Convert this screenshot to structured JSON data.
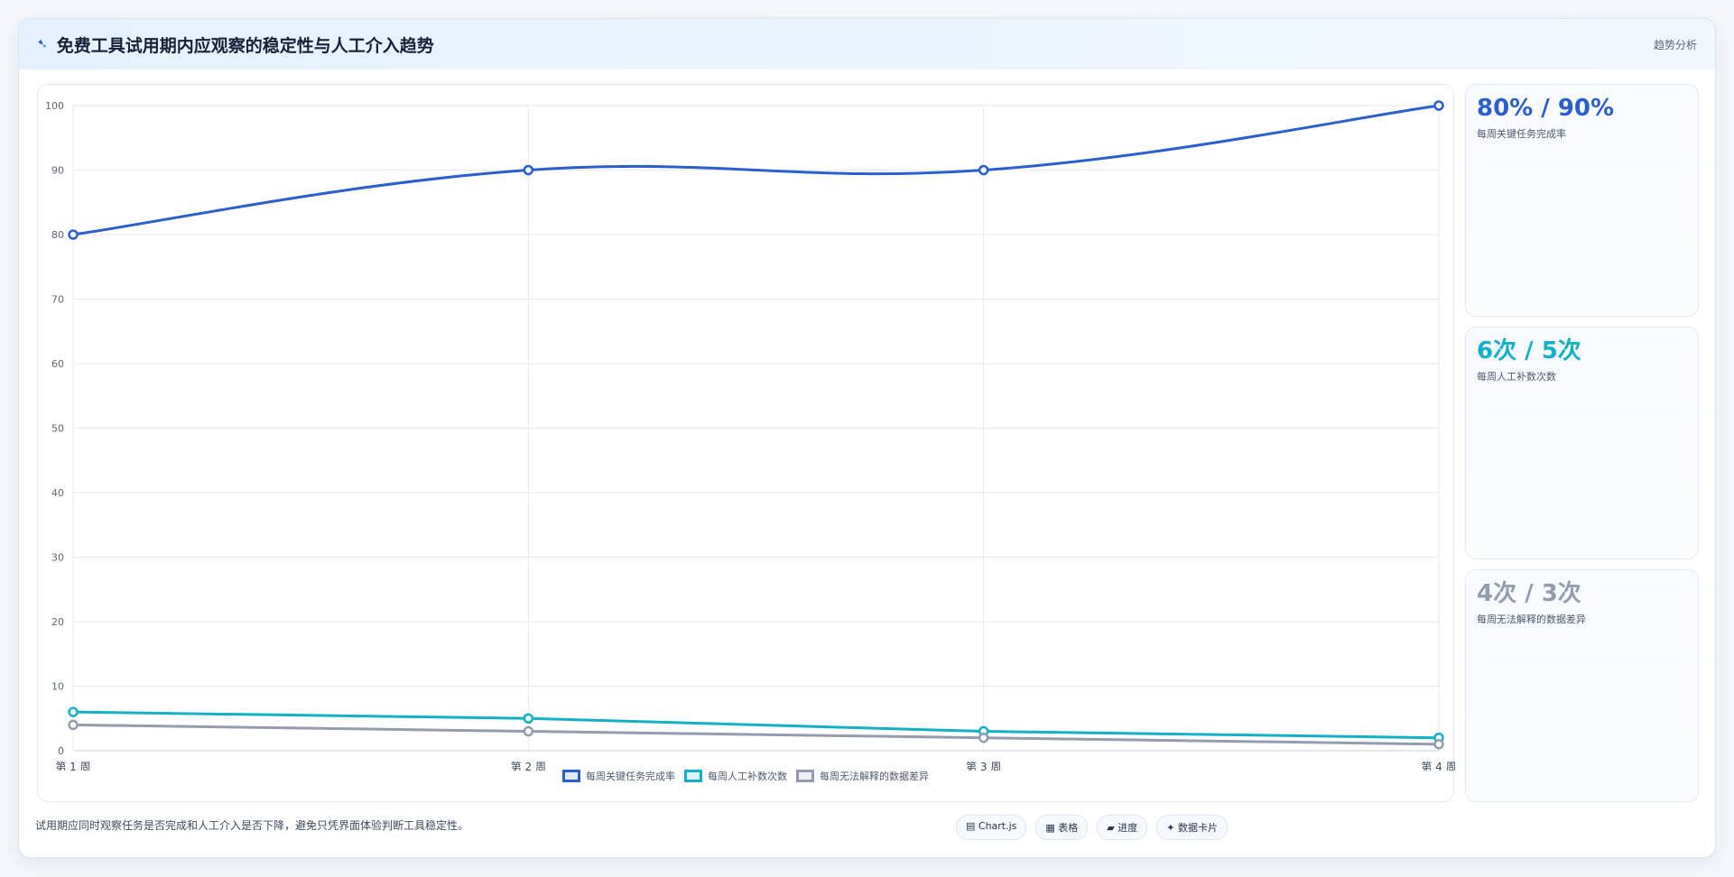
{
  "header": {
    "icon": "chart-line-icon",
    "title": "免费工具试用期内应观察的稳定性与人工介入趋势",
    "tag": "趋势分析"
  },
  "chart_data": {
    "type": "line",
    "categories": [
      "第 1 周",
      "第 2 周",
      "第 3 周",
      "第 4 周"
    ],
    "ylim": [
      0,
      100
    ],
    "yticks": [
      0,
      10,
      20,
      30,
      40,
      50,
      60,
      70,
      80,
      90,
      100
    ],
    "grid": true,
    "legend": "bottom",
    "series": [
      {
        "name": "每周关键任务完成率",
        "values": [
          80,
          90,
          90,
          100
        ],
        "color": "#2a5fd0"
      },
      {
        "name": "每周人工补数次数",
        "values": [
          6,
          5,
          3,
          2
        ],
        "color": "#13b0c9"
      },
      {
        "name": "每周无法解释的数据差异",
        "values": [
          4,
          3,
          2,
          1
        ],
        "color": "#949daf"
      }
    ]
  },
  "stats": [
    {
      "value": "80% / 90%",
      "label": "每周关键任务完成率",
      "color": "#2a5fd0"
    },
    {
      "value": "6次 / 5次",
      "label": "每周人工补数次数",
      "color": "#13b0c9"
    },
    {
      "value": "4次 / 3次",
      "label": "每周无法解释的数据差异",
      "color": "#949daf"
    }
  ],
  "footer": {
    "note": "试用期应同时观察任务是否完成和人工介入是否下降，避免只凭界面体验判断工具稳定性。",
    "chips": [
      "▤ Chart.js",
      "▦ 表格",
      "▰ 进度",
      "✦ 数据卡片"
    ]
  }
}
